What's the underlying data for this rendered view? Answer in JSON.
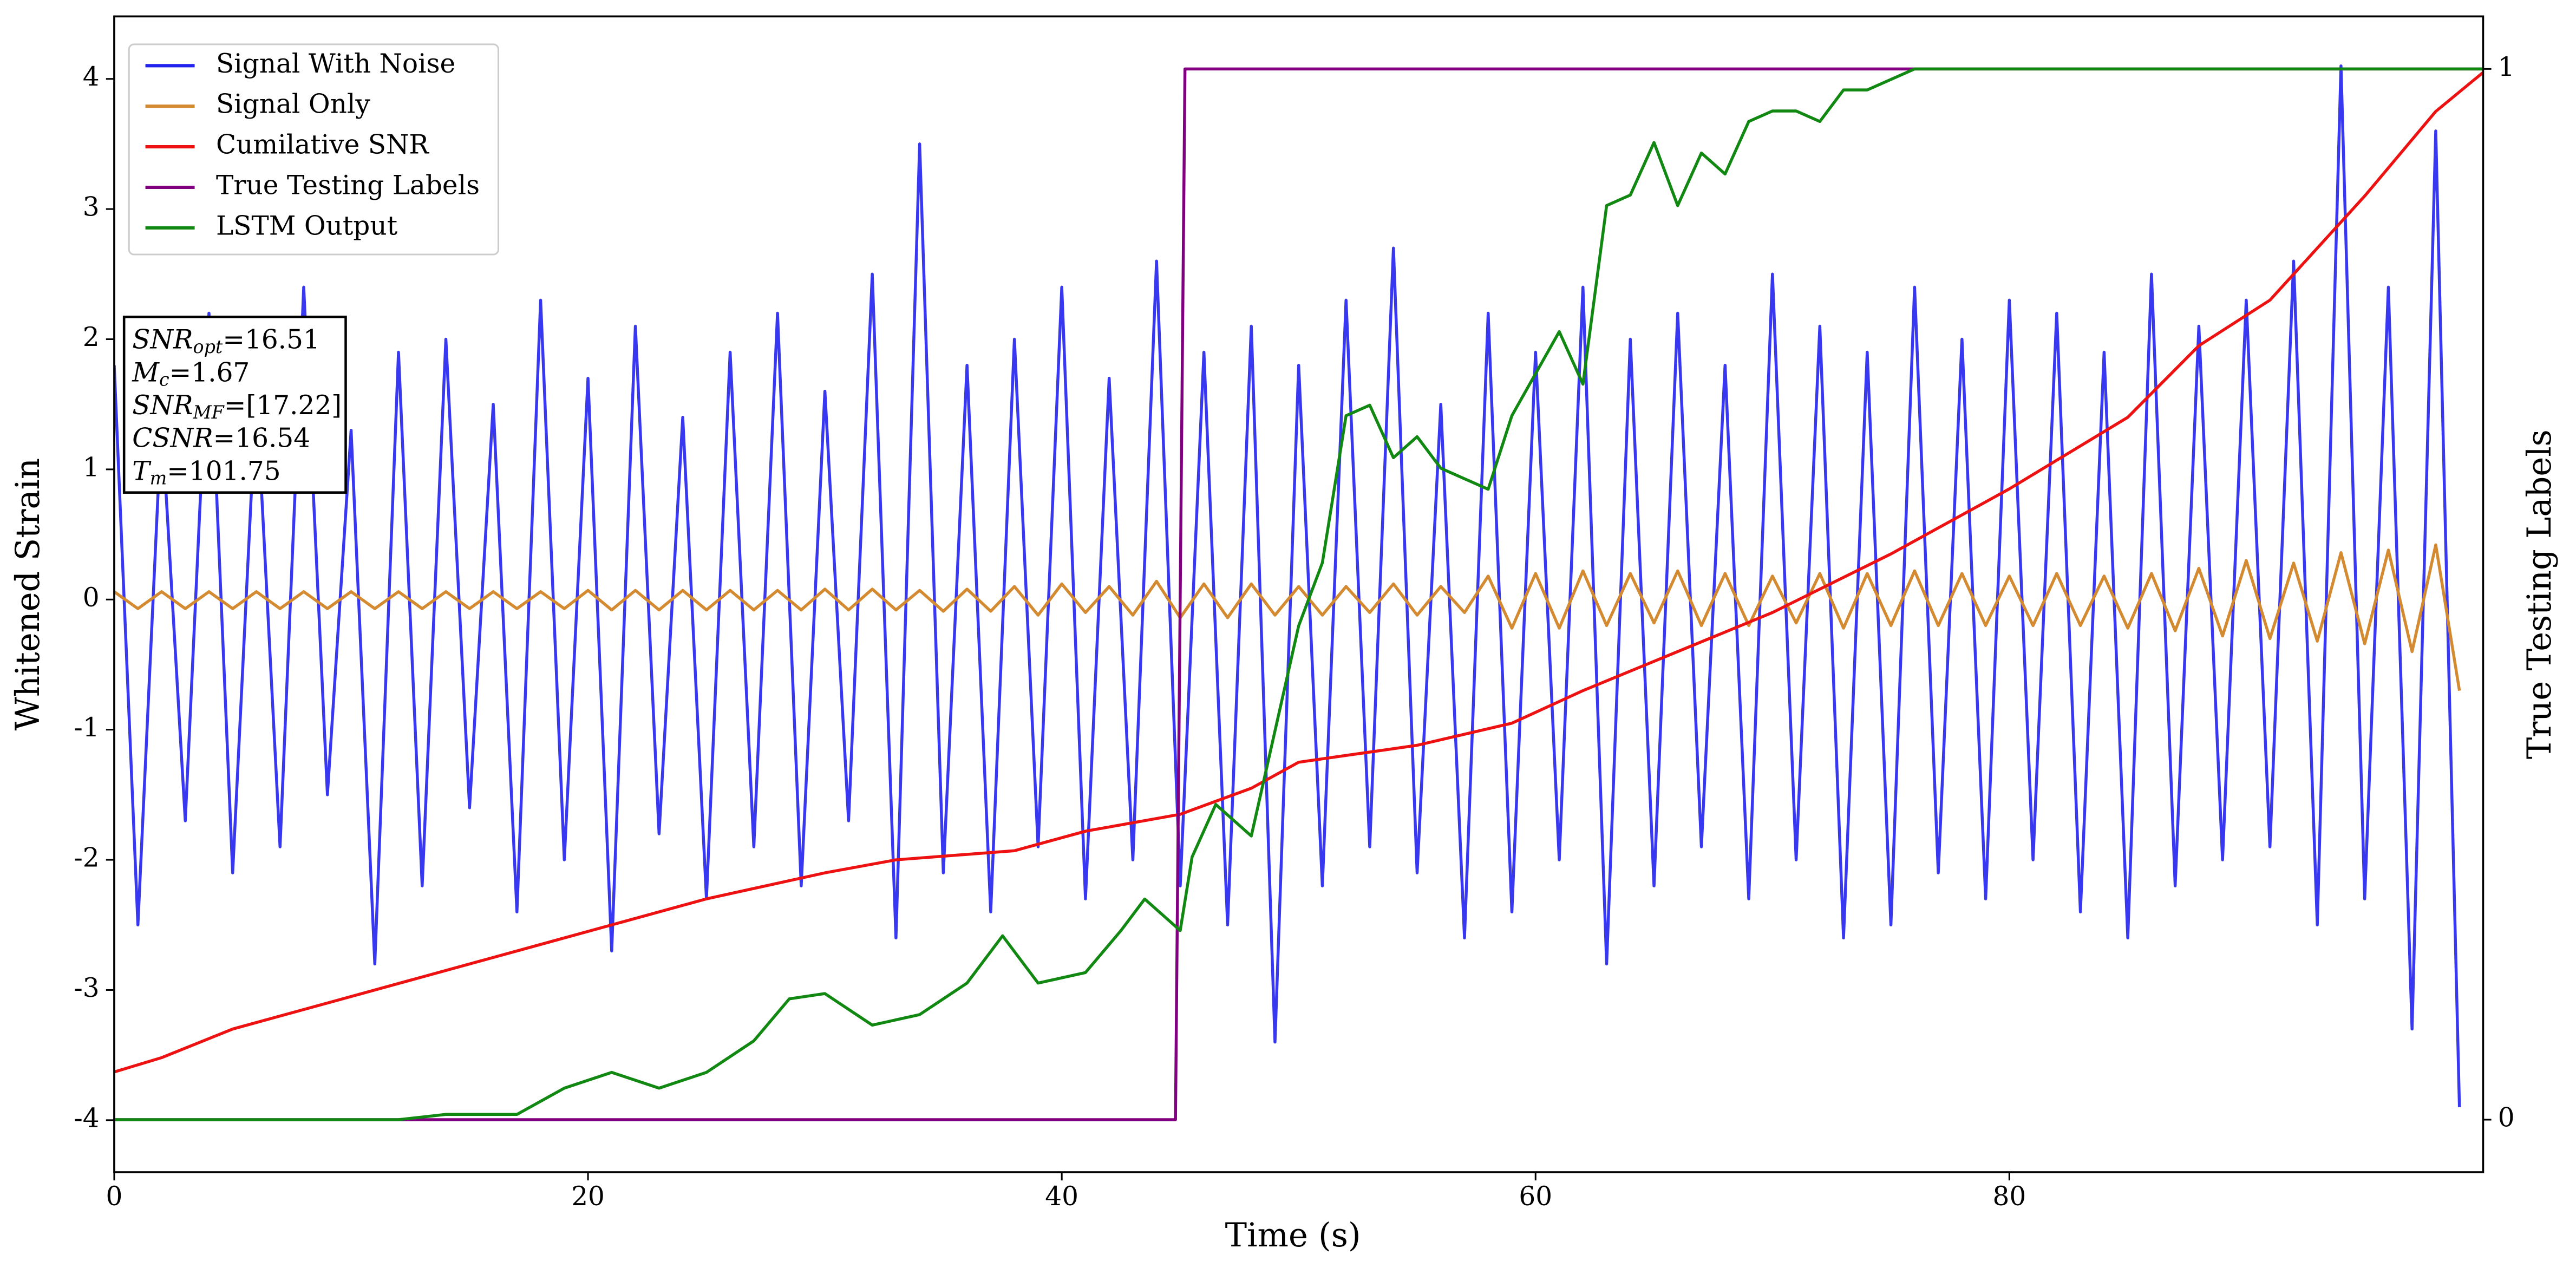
{
  "chart_data": {
    "type": "line",
    "xlabel": "Time (s)",
    "ylabel": "Whitened Strain",
    "y2label": "True Testing Labels",
    "xlim": [
      0,
      100
    ],
    "xticks": [
      0,
      20,
      40,
      60,
      80
    ],
    "ylim": [
      -4.4,
      4.48
    ],
    "yticks": [
      -4,
      -3,
      -2,
      -1,
      0,
      1,
      2,
      3,
      4
    ],
    "y2lim": [
      -0.05,
      1.05
    ],
    "y2ticks": [
      0,
      1
    ],
    "legend": "upper left",
    "annotation": [
      {
        "label": "SNR",
        "sub": "opt",
        "text": "=16.51"
      },
      {
        "label": "M",
        "sub": "c",
        "text": "=1.67"
      },
      {
        "label": "SNR",
        "sub": "MF",
        "text": "=[17.22]"
      },
      {
        "label": "CSNR",
        "text": "=16.54"
      },
      {
        "label": "T",
        "sub": "m",
        "text": "=101.75"
      }
    ],
    "x": [
      0,
      1,
      2,
      3,
      4,
      5,
      6,
      7,
      8,
      9,
      10,
      11,
      12,
      13,
      14,
      15,
      16,
      17,
      18,
      19,
      20,
      21,
      22,
      23,
      24,
      25,
      26,
      27,
      28,
      29,
      30,
      31,
      32,
      33,
      34,
      35,
      36,
      37,
      38,
      39,
      40,
      41,
      42,
      43,
      44,
      45,
      46,
      47,
      48,
      49,
      50,
      51,
      52,
      53,
      54,
      55,
      56,
      57,
      58,
      59,
      60,
      61,
      62,
      63,
      64,
      65,
      66,
      67,
      68,
      69,
      70,
      71,
      72,
      73,
      74,
      75,
      76,
      77,
      78,
      79,
      80,
      81,
      82,
      83,
      84,
      85,
      86,
      87,
      88,
      89,
      90,
      91,
      92,
      93,
      94,
      95,
      96,
      97,
      98,
      99
    ],
    "series": [
      {
        "name": "Signal With Noise",
        "color": "#2222ee",
        "opacity": 0.9,
        "values": [
          1.8,
          -2.5,
          1.4,
          -1.7,
          2.2,
          -2.1,
          1.6,
          -1.9,
          2.4,
          -1.5,
          1.3,
          -2.8,
          1.9,
          -2.2,
          2.0,
          -1.6,
          1.5,
          -2.4,
          2.3,
          -2.0,
          1.7,
          -2.7,
          2.1,
          -1.8,
          1.4,
          -2.3,
          1.9,
          -1.9,
          2.2,
          -2.2,
          1.6,
          -1.7,
          2.5,
          -2.6,
          3.5,
          -2.1,
          1.8,
          -2.4,
          2.0,
          -1.9,
          2.4,
          -2.3,
          1.7,
          -2.0,
          2.6,
          -2.2,
          1.9,
          -2.5,
          2.1,
          -3.4,
          1.8,
          -2.2,
          2.3,
          -1.9,
          2.7,
          -2.1,
          1.5,
          -2.6,
          2.2,
          -2.4,
          1.9,
          -2.0,
          2.4,
          -2.8,
          2.0,
          -2.2,
          2.2,
          -1.9,
          1.8,
          -2.3,
          2.5,
          -2.0,
          2.1,
          -2.6,
          1.9,
          -2.5,
          2.4,
          -2.1,
          2.0,
          -2.3,
          2.3,
          -2.0,
          2.2,
          -2.4,
          1.9,
          -2.6,
          2.5,
          -2.2,
          2.1,
          -2.0,
          2.3,
          -1.9,
          2.6,
          -2.5,
          4.1,
          -2.3,
          2.4,
          -3.3,
          3.6,
          -3.9
        ]
      },
      {
        "name": "Signal Only",
        "color": "#d48a30",
        "values": [
          0.06,
          -0.07,
          0.06,
          -0.07,
          0.06,
          -0.07,
          0.06,
          -0.07,
          0.06,
          -0.07,
          0.06,
          -0.07,
          0.06,
          -0.07,
          0.06,
          -0.07,
          0.06,
          -0.07,
          0.06,
          -0.07,
          0.07,
          -0.08,
          0.07,
          -0.08,
          0.07,
          -0.08,
          0.07,
          -0.08,
          0.07,
          -0.08,
          0.08,
          -0.08,
          0.08,
          -0.08,
          0.07,
          -0.09,
          0.08,
          -0.09,
          0.1,
          -0.12,
          0.12,
          -0.1,
          0.1,
          -0.12,
          0.14,
          -0.14,
          0.12,
          -0.14,
          0.12,
          -0.12,
          0.1,
          -0.12,
          0.1,
          -0.1,
          0.12,
          -0.12,
          0.1,
          -0.1,
          0.18,
          -0.22,
          0.2,
          -0.22,
          0.22,
          -0.2,
          0.2,
          -0.18,
          0.22,
          -0.2,
          0.2,
          -0.2,
          0.18,
          -0.18,
          0.2,
          -0.22,
          0.2,
          -0.2,
          0.22,
          -0.2,
          0.2,
          -0.2,
          0.18,
          -0.2,
          0.2,
          -0.2,
          0.18,
          -0.22,
          0.2,
          -0.24,
          0.24,
          -0.28,
          0.3,
          -0.3,
          0.28,
          -0.32,
          0.36,
          -0.34,
          0.38,
          -0.4,
          0.42,
          -0.7
        ]
      },
      {
        "name": "Cumilative SNR",
        "color": "#ee1111",
        "x": [
          0,
          2,
          5,
          10,
          15,
          20,
          25,
          30,
          33,
          38,
          41,
          45,
          48,
          50,
          55,
          59,
          62,
          66,
          70,
          75,
          80,
          85,
          88,
          91,
          95,
          98,
          100
        ],
        "values": [
          -3.63,
          -3.52,
          -3.3,
          -3.05,
          -2.8,
          -2.55,
          -2.3,
          -2.1,
          -2.0,
          -1.93,
          -1.78,
          -1.65,
          -1.45,
          -1.25,
          -1.12,
          -0.95,
          -0.7,
          -0.4,
          -0.1,
          0.35,
          0.85,
          1.4,
          1.95,
          2.3,
          3.1,
          3.75,
          4.05
        ]
      },
      {
        "name": "True Testing Labels",
        "color": "#800080",
        "axis": "y2",
        "x": [
          0,
          44.8,
          45.2,
          100
        ],
        "values": [
          0,
          0,
          1,
          1
        ]
      },
      {
        "name": "LSTM Output",
        "color": "#118811",
        "axis": "y2",
        "x": [
          0,
          12,
          14,
          17,
          19,
          21,
          23,
          25,
          27,
          28.5,
          30,
          32,
          34,
          36,
          37.5,
          39,
          41,
          42.5,
          43.5,
          45,
          45.5,
          46.5,
          48,
          49,
          50,
          51,
          52,
          53,
          54,
          55,
          56,
          57,
          58,
          59,
          60,
          61,
          62,
          63,
          64,
          65,
          66,
          67,
          68,
          69,
          70,
          71,
          72,
          73,
          74,
          76,
          100
        ],
        "values": [
          0,
          0,
          0.005,
          0.005,
          0.03,
          0.045,
          0.03,
          0.045,
          0.075,
          0.115,
          0.12,
          0.09,
          0.1,
          0.13,
          0.175,
          0.13,
          0.14,
          0.18,
          0.21,
          0.18,
          0.25,
          0.3,
          0.27,
          0.37,
          0.47,
          0.53,
          0.67,
          0.68,
          0.63,
          0.65,
          0.62,
          0.61,
          0.6,
          0.67,
          0.71,
          0.75,
          0.7,
          0.87,
          0.88,
          0.93,
          0.87,
          0.92,
          0.9,
          0.95,
          0.96,
          0.96,
          0.95,
          0.98,
          0.98,
          1,
          1
        ]
      }
    ]
  }
}
